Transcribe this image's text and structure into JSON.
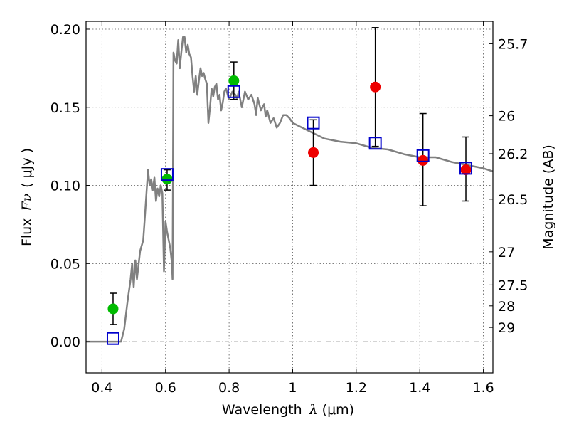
{
  "chart_data": {
    "type": "scatter",
    "title": "",
    "xlabel": "Wavelength",
    "xlabel_symbol": "λ",
    "xlabel_unit": "(μm)",
    "ylabel": "Flux",
    "ylabel_symbol": "Fν",
    "ylabel_unit": "( μJy )",
    "ylabel_right": "Magnitude (AB)",
    "xlim": [
      0.35,
      1.63
    ],
    "ylim": [
      -0.02,
      0.205
    ],
    "grid": true,
    "x_ticks": [
      0.4,
      0.6,
      0.8,
      1.0,
      1.2,
      1.4,
      1.6
    ],
    "x_tick_labels": [
      "0.4",
      "0.6",
      "0.8",
      "1",
      "1.2",
      "1.4",
      "1.6"
    ],
    "y_ticks": [
      0.0,
      0.05,
      0.1,
      0.15,
      0.2
    ],
    "y_tick_labels": [
      "0.00",
      "0.05",
      "0.10",
      "0.15",
      "0.20"
    ],
    "right_ticks": [
      {
        "label": "25.7",
        "flux": 0.1907
      },
      {
        "label": "26",
        "flux": 0.1446
      },
      {
        "label": "26.2",
        "flux": 0.1203
      },
      {
        "label": "26.5",
        "flux": 0.0912
      },
      {
        "label": "27",
        "flux": 0.0575
      },
      {
        "label": "27.5",
        "flux": 0.0363
      },
      {
        "label": "28",
        "flux": 0.0229
      },
      {
        "label": "29",
        "flux": 0.0091
      }
    ],
    "colors": {
      "spectrum": "#808080",
      "green": "#00bb00",
      "red": "#ee0000",
      "model": "#0000cc"
    },
    "series": [
      {
        "name": "spectrum",
        "kind": "line",
        "x": [
          0.35,
          0.46,
          0.47,
          0.48,
          0.49,
          0.495,
          0.5,
          0.505,
          0.51,
          0.52,
          0.53,
          0.535,
          0.54,
          0.545,
          0.55,
          0.555,
          0.56,
          0.565,
          0.57,
          0.575,
          0.58,
          0.585,
          0.59,
          0.595,
          0.6,
          0.605,
          0.61,
          0.615,
          0.62,
          0.622,
          0.625,
          0.63,
          0.635,
          0.64,
          0.645,
          0.65,
          0.655,
          0.66,
          0.665,
          0.67,
          0.675,
          0.68,
          0.685,
          0.69,
          0.695,
          0.7,
          0.705,
          0.71,
          0.715,
          0.72,
          0.725,
          0.73,
          0.735,
          0.74,
          0.745,
          0.75,
          0.755,
          0.76,
          0.765,
          0.77,
          0.775,
          0.78,
          0.785,
          0.79,
          0.8,
          0.81,
          0.82,
          0.825,
          0.83,
          0.84,
          0.85,
          0.86,
          0.87,
          0.88,
          0.885,
          0.89,
          0.9,
          0.91,
          0.915,
          0.92,
          0.93,
          0.94,
          0.95,
          0.96,
          0.97,
          0.98,
          0.99,
          1.0,
          1.05,
          1.1,
          1.15,
          1.2,
          1.25,
          1.3,
          1.35,
          1.4,
          1.45,
          1.5,
          1.55,
          1.6,
          1.63
        ],
        "y": [
          0.0,
          0.0,
          0.008,
          0.025,
          0.04,
          0.05,
          0.035,
          0.052,
          0.04,
          0.058,
          0.065,
          0.08,
          0.095,
          0.11,
          0.1,
          0.104,
          0.097,
          0.105,
          0.09,
          0.098,
          0.093,
          0.1,
          0.095,
          0.045,
          0.077,
          0.07,
          0.065,
          0.06,
          0.05,
          0.04,
          0.185,
          0.18,
          0.178,
          0.193,
          0.175,
          0.186,
          0.195,
          0.195,
          0.185,
          0.19,
          0.184,
          0.182,
          0.17,
          0.16,
          0.17,
          0.158,
          0.167,
          0.175,
          0.17,
          0.172,
          0.168,
          0.165,
          0.14,
          0.15,
          0.162,
          0.157,
          0.163,
          0.165,
          0.155,
          0.158,
          0.148,
          0.153,
          0.16,
          0.162,
          0.155,
          0.16,
          0.158,
          0.155,
          0.16,
          0.15,
          0.16,
          0.155,
          0.158,
          0.152,
          0.145,
          0.156,
          0.148,
          0.152,
          0.144,
          0.148,
          0.14,
          0.143,
          0.137,
          0.14,
          0.145,
          0.145,
          0.143,
          0.14,
          0.135,
          0.13,
          0.128,
          0.127,
          0.124,
          0.123,
          0.12,
          0.118,
          0.118,
          0.115,
          0.113,
          0.111,
          0.109
        ]
      },
      {
        "name": "green points",
        "kind": "errorbar",
        "x": [
          0.435,
          0.605,
          0.815
        ],
        "y": [
          0.021,
          0.104,
          0.167
        ],
        "yerr_low": [
          0.011,
          0.097,
          0.155
        ],
        "yerr_high": [
          0.031,
          0.11,
          0.179
        ]
      },
      {
        "name": "red points",
        "kind": "errorbar",
        "x": [
          1.065,
          1.26,
          1.41,
          1.545
        ],
        "y": [
          0.121,
          0.163,
          0.116,
          0.11
        ],
        "yerr_low": [
          0.1,
          0.125,
          0.087,
          0.09
        ],
        "yerr_high": [
          0.142,
          0.201,
          0.146,
          0.131
        ]
      },
      {
        "name": "model boxes",
        "kind": "squares",
        "x": [
          0.435,
          0.605,
          0.815,
          1.065,
          1.26,
          1.41,
          1.545
        ],
        "y": [
          0.002,
          0.107,
          0.16,
          0.14,
          0.127,
          0.119,
          0.111
        ]
      }
    ]
  }
}
